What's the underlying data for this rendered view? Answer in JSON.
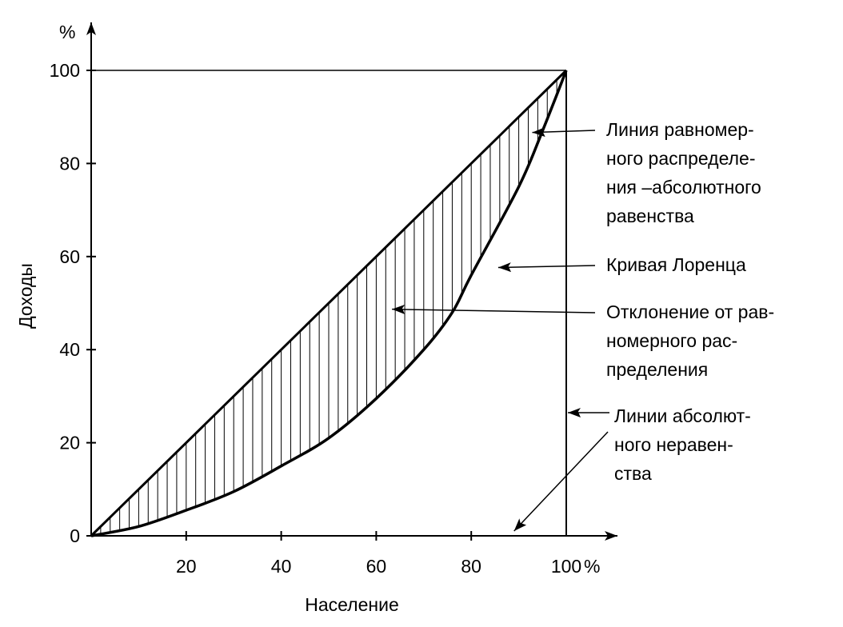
{
  "chart_data": {
    "type": "line",
    "title": "",
    "xlabel": "Население",
    "ylabel": "Доходы",
    "x_unit_label": "%",
    "y_unit_label": "%",
    "xlim": [
      0,
      100
    ],
    "ylim": [
      0,
      100
    ],
    "x_ticks": [
      20,
      40,
      60,
      80,
      100
    ],
    "x_tick_labels": [
      "20",
      "40",
      "60",
      "80",
      "100"
    ],
    "y_ticks": [
      0,
      20,
      40,
      60,
      80,
      100
    ],
    "y_tick_labels": [
      "0",
      "20",
      "40",
      "60",
      "80",
      "100"
    ],
    "grid": false,
    "legend": "none",
    "series": [
      {
        "key": "equality",
        "x": [
          0,
          100
        ],
        "y": [
          0,
          100
        ]
      },
      {
        "key": "lorenz",
        "x": [
          0,
          10,
          20,
          30,
          40,
          50,
          60,
          70,
          76,
          80,
          90,
          95,
          100
        ],
        "y": [
          0,
          2,
          5.5,
          9.5,
          15,
          21,
          29.5,
          40,
          48,
          56,
          75,
          87,
          100
        ]
      },
      {
        "key": "absolute_inequality",
        "x": [
          0,
          100,
          100
        ],
        "y": [
          0,
          0,
          100
        ]
      }
    ],
    "shaded_region": "between equality and lorenz",
    "annotations": [
      {
        "id": "equality",
        "lines": [
          "Линия равномер-",
          "ного распределе-",
          "ния –абсолютного",
          "равенства"
        ],
        "target": [
          92,
          87
        ]
      },
      {
        "id": "lorenz",
        "lines": [
          "Кривая Лоренца"
        ],
        "target": [
          85,
          58
        ]
      },
      {
        "id": "deviation",
        "lines": [
          "Отклонение от рав-",
          "номерного рас-",
          "пределения"
        ],
        "target": [
          65,
          48
        ]
      },
      {
        "id": "inequality",
        "lines": [
          "Линии абсолют-",
          "ного нeравен-",
          "ства"
        ],
        "targets": [
          [
            100,
            27
          ],
          [
            88,
            0
          ]
        ]
      }
    ]
  }
}
